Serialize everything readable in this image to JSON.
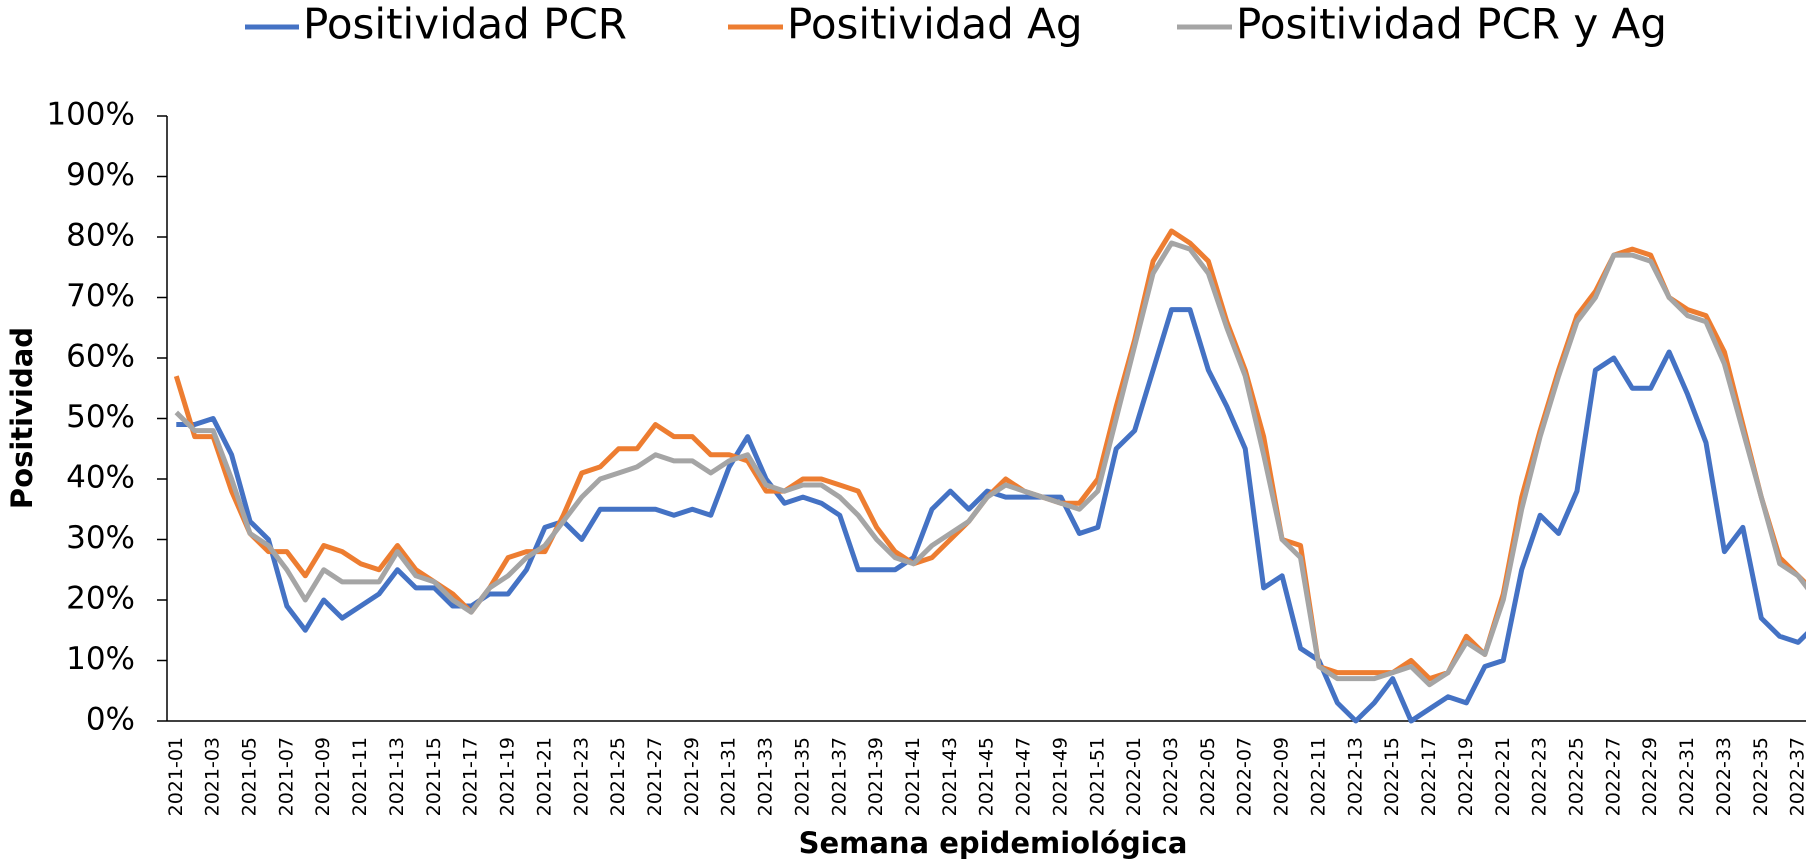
{
  "chart_data": {
    "type": "line",
    "x_label": "Semana epidemiológica",
    "y_label": "Positividad",
    "categories": [
      "2021-01",
      null,
      "2021-03",
      null,
      "2021-05",
      null,
      "2021-07",
      null,
      "2021-09",
      null,
      "2021-11",
      null,
      "2021-13",
      null,
      "2021-15",
      null,
      "2021-17",
      null,
      "2021-19",
      null,
      "2021-21",
      null,
      "2021-23",
      null,
      "2021-25",
      null,
      "2021-27",
      null,
      "2021-29",
      null,
      "2021-31",
      null,
      "2021-33",
      null,
      "2021-35",
      null,
      "2021-37",
      null,
      "2021-39",
      null,
      "2021-41",
      null,
      "2021-43",
      null,
      "2021-45",
      null,
      "2021-47",
      null,
      "2021-49",
      null,
      "2021-51",
      null,
      "2022-01",
      null,
      "2022-03",
      null,
      "2022-05",
      null,
      "2022-07",
      null,
      "2022-09",
      null,
      "2022-11",
      null,
      "2022-13",
      null,
      "2022-15",
      null,
      "2022-17",
      null,
      "2022-19",
      null,
      "2022-21",
      null,
      "2022-23",
      null,
      "2022-25",
      null,
      "2022-27",
      null,
      "2022-29",
      null,
      "2022-31",
      null,
      "2022-33",
      null,
      "2022-35",
      null,
      "2022-37",
      null
    ],
    "series": [
      {
        "name": "Positividad PCR",
        "color": "#4472c4",
        "values": [
          49,
          49,
          50,
          44,
          33,
          30,
          19,
          15,
          20,
          17,
          19,
          21,
          25,
          22,
          22,
          19,
          19,
          21,
          21,
          25,
          32,
          33,
          30,
          35,
          35,
          35,
          35,
          34,
          35,
          34,
          42,
          47,
          40,
          36,
          37,
          36,
          34,
          25,
          25,
          25,
          27,
          35,
          38,
          35,
          38,
          37,
          37,
          37,
          37,
          31,
          32,
          45,
          48,
          58,
          68,
          68,
          58,
          52,
          45,
          22,
          24,
          12,
          10,
          3,
          0,
          3,
          7,
          0,
          2,
          4,
          3,
          9,
          10,
          25,
          34,
          31,
          38,
          58,
          60,
          55,
          55,
          61,
          54,
          46,
          28,
          32,
          17,
          14,
          13,
          16
        ]
      },
      {
        "name": "Positividad Ag",
        "color": "#ed7d31",
        "values": [
          57,
          47,
          47,
          38,
          31,
          28,
          28,
          24,
          29,
          28,
          26,
          25,
          29,
          25,
          23,
          21,
          18,
          22,
          27,
          28,
          28,
          34,
          41,
          42,
          45,
          45,
          49,
          47,
          47,
          44,
          44,
          43,
          38,
          38,
          40,
          40,
          39,
          38,
          32,
          28,
          26,
          27,
          30,
          33,
          37,
          40,
          38,
          37,
          36,
          36,
          40,
          52,
          63,
          76,
          81,
          79,
          76,
          66,
          58,
          47,
          30,
          29,
          9,
          8,
          8,
          8,
          8,
          10,
          7,
          8,
          14,
          11,
          21,
          37,
          48,
          58,
          67,
          71,
          77,
          78,
          77,
          70,
          68,
          67,
          61,
          49,
          37,
          27,
          24,
          21
        ]
      },
      {
        "name": "Positividad PCR y Ag",
        "color": "#a5a5a5",
        "values": [
          51,
          48,
          48,
          40,
          31,
          29,
          25,
          20,
          25,
          23,
          23,
          23,
          28,
          24,
          23,
          20,
          18,
          22,
          24,
          27,
          29,
          33,
          37,
          40,
          41,
          42,
          44,
          43,
          43,
          41,
          43,
          44,
          39,
          38,
          39,
          39,
          37,
          34,
          30,
          27,
          26,
          29,
          31,
          33,
          37,
          39,
          38,
          37,
          36,
          35,
          38,
          50,
          62,
          74,
          79,
          78,
          74,
          65,
          57,
          44,
          30,
          27,
          9,
          7,
          7,
          7,
          8,
          9,
          6,
          8,
          13,
          11,
          20,
          35,
          47,
          57,
          66,
          70,
          77,
          77,
          76,
          70,
          67,
          66,
          59,
          48,
          37,
          26,
          24,
          20
        ]
      }
    ],
    "ylim": [
      0,
      100
    ],
    "yticks": [
      {
        "value": 0,
        "label": "0%"
      },
      {
        "value": 10,
        "label": "10%"
      },
      {
        "value": 20,
        "label": "20%"
      },
      {
        "value": 30,
        "label": "30%"
      },
      {
        "value": 40,
        "label": "40%"
      },
      {
        "value": 50,
        "label": "50%"
      },
      {
        "value": 60,
        "label": "60%"
      },
      {
        "value": 70,
        "label": "70%"
      },
      {
        "value": 80,
        "label": "80%"
      },
      {
        "value": 90,
        "label": "90%"
      },
      {
        "value": 100,
        "label": "100%"
      }
    ],
    "legend": "top",
    "grid": false
  }
}
